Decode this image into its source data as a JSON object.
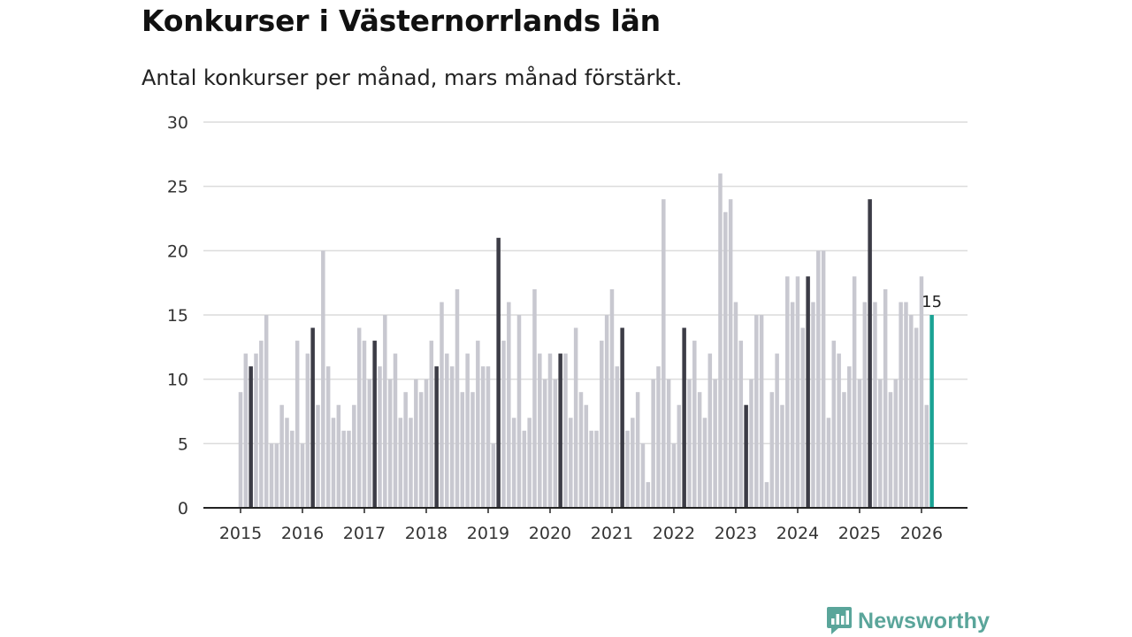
{
  "header": {
    "title": "Konkurser i Västernorrlands län",
    "subtitle": "Antal konkurser per månad, mars månad förstärkt."
  },
  "brand": {
    "name": "Newsworthy"
  },
  "colors": {
    "bar": "#c8c8d0",
    "highlight": "#3c3c46",
    "latest": "#1aa394",
    "grid": "#dcdcdc",
    "axis": "#222222",
    "brand": "#5aa59a"
  },
  "icons": {
    "logo": "newsworthy-logo-icon"
  },
  "chart_data": {
    "type": "bar",
    "title": "Konkurser i Västernorrlands län",
    "subtitle": "Antal konkurser per månad, mars månad förstärkt.",
    "xlabel": "",
    "ylabel": "",
    "ylim": [
      0,
      30
    ],
    "yticks": [
      0,
      5,
      10,
      15,
      20,
      25,
      30
    ],
    "xticks": [
      "2015",
      "2016",
      "2017",
      "2018",
      "2019",
      "2020",
      "2021",
      "2022",
      "2023",
      "2024",
      "2025",
      "2026"
    ],
    "start": "2015-01",
    "highlight_month": "mars",
    "grid": true,
    "series": [
      {
        "name": "Antal konkurser",
        "values": [
          9,
          12,
          11,
          12,
          13,
          15,
          5,
          5,
          8,
          7,
          6,
          13,
          5,
          12,
          14,
          8,
          20,
          11,
          7,
          8,
          6,
          6,
          8,
          14,
          13,
          10,
          13,
          11,
          15,
          10,
          12,
          7,
          9,
          7,
          10,
          9,
          10,
          13,
          11,
          16,
          12,
          11,
          17,
          9,
          12,
          9,
          13,
          11,
          11,
          5,
          21,
          13,
          16,
          7,
          15,
          6,
          7,
          17,
          12,
          10,
          12,
          10,
          12,
          12,
          7,
          14,
          9,
          8,
          6,
          6,
          13,
          15,
          17,
          11,
          14,
          6,
          7,
          9,
          5,
          2,
          10,
          11,
          24,
          10,
          5,
          8,
          14,
          10,
          13,
          9,
          7,
          12,
          10,
          26,
          23,
          24,
          16,
          13,
          8,
          10,
          15,
          15,
          2,
          9,
          12,
          8,
          18,
          16,
          18,
          14,
          18,
          16,
          20,
          20,
          7,
          13,
          12,
          9,
          11,
          18,
          10,
          16,
          24,
          16,
          10,
          17,
          9,
          10,
          16,
          16,
          15,
          14,
          18,
          8,
          15
        ]
      }
    ],
    "annotations": [
      {
        "label": "15"
      }
    ]
  }
}
